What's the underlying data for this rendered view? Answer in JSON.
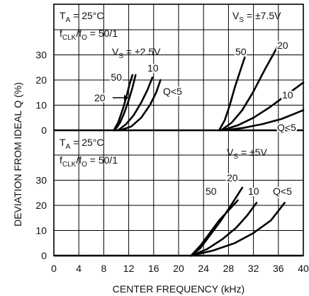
{
  "chart_data": {
    "type": "line",
    "xlabel": "CENTER FREQUENCY (kHz)",
    "ylabel": "DEVIATION FROM IDEAL Q (%)",
    "xlim": [
      0,
      40
    ],
    "x_ticks": [
      "0",
      "4",
      "8",
      "12",
      "16",
      "20",
      "24",
      "28",
      "32",
      "36",
      "40"
    ],
    "grid": true,
    "panels": [
      {
        "name": "upper",
        "ylim": [
          0,
          40
        ],
        "y_ticks": [
          "0",
          "10",
          "20",
          "30"
        ],
        "annotations": {
          "ta": "T",
          "ta_sub": "A",
          "ta_val": " = 25°C",
          "fclk": "f",
          "fclk_sub": "CLK",
          "fclk_mid": "/f",
          "fclk_sub2": "O",
          "fclk_val": " = 50/1"
        },
        "groups": [
          {
            "label_main": "V",
            "label_sub": "S",
            "label_val": " = ±2.5V",
            "series": [
              {
                "name": "50",
                "x": [
                  9.6,
                  10.3,
                  11.0,
                  11.6,
                  12.1,
                  12.6
                ],
                "y": [
                  0,
                  3,
                  8,
                  13,
                  18,
                  22
                ]
              },
              {
                "name": "20",
                "x": [
                  9.8,
                  10.6,
                  11.3,
                  12.0,
                  12.6,
                  13.1
                ],
                "y": [
                  0,
                  3,
                  7,
                  12,
                  17,
                  22
                ]
              },
              {
                "name": "10",
                "x": [
                  10.3,
                  11.6,
                  12.8,
                  14.0,
                  15.0,
                  15.8
                ],
                "y": [
                  0,
                  2.5,
                  6,
                  11,
                  16,
                  21
                ]
              },
              {
                "name": "Q<5",
                "x": [
                  10.6,
                  12.4,
                  14.0,
                  15.4,
                  16.4,
                  17.1
                ],
                "y": [
                  0,
                  1.5,
                  5,
                  10,
                  15,
                  20
                ]
              }
            ]
          },
          {
            "label_main": "V",
            "label_sub": "S",
            "label_val": " = ±7.5V",
            "series": [
              {
                "name": "50",
                "x": [
                  26.5,
                  27.4,
                  28.2,
                  29.0,
                  29.8,
                  30.6
                ],
                "y": [
                  0,
                  4,
                  10,
                  17,
                  23,
                  29
                ]
              },
              {
                "name": "20",
                "x": [
                  26.8,
                  28.5,
                  30.2,
                  31.9,
                  33.8,
                  35.8
                ],
                "y": [
                  0,
                  3,
                  8,
                  15,
                  24,
                  33
                ]
              },
              {
                "name": "10",
                "x": [
                  27.0,
                  29.5,
                  32.0,
                  34.5,
                  37.0,
                  40.0
                ],
                "y": [
                  0,
                  2,
                  5,
                  9,
                  13.5,
                  19
                ]
              },
              {
                "name": "Q<5",
                "x": [
                  27.4,
                  30.5,
                  33.5,
                  36.5,
                  38.5,
                  40.0
                ],
                "y": [
                  0,
                  1,
                  2.5,
                  4.5,
                  6.5,
                  8
                ]
              }
            ]
          }
        ]
      },
      {
        "name": "lower",
        "ylim": [
          0,
          40
        ],
        "y_ticks": [
          "0",
          "10",
          "20",
          "30"
        ],
        "annotations": {
          "ta": "T",
          "ta_sub": "A",
          "ta_val": " = 25°C",
          "fclk": "f",
          "fclk_sub": "CLK",
          "fclk_mid": "/f",
          "fclk_sub2": "O",
          "fclk_val": " = 50/1"
        },
        "groups": [
          {
            "label_main": "V",
            "label_sub": "S",
            "label_val": " = ±5V",
            "series": [
              {
                "name": "50",
                "x": [
                  22.0,
                  23.5,
                  25.0,
                  26.5,
                  28.0,
                  29.5
                ],
                "y": [
                  0,
                  4,
                  9,
                  14,
                  18,
                  22
                ]
              },
              {
                "name": "20",
                "x": [
                  22.0,
                  23.5,
                  25.0,
                  26.8,
                  28.4,
                  30.2
                ],
                "y": [
                  0,
                  3,
                  8,
                  14,
                  20,
                  27
                ]
              },
              {
                "name": "10",
                "x": [
                  22.0,
                  24.5,
                  27.0,
                  29.2,
                  31.0,
                  32.5
                ],
                "y": [
                  0,
                  2.5,
                  6.5,
                  11,
                  16,
                  21
                ]
              },
              {
                "name": "Q<5",
                "x": [
                  22.0,
                  25.5,
                  29.0,
                  32.0,
                  34.8,
                  37.0
                ],
                "y": [
                  0,
                  2,
                  5,
                  9,
                  14,
                  21
                ]
              }
            ]
          }
        ]
      }
    ]
  }
}
